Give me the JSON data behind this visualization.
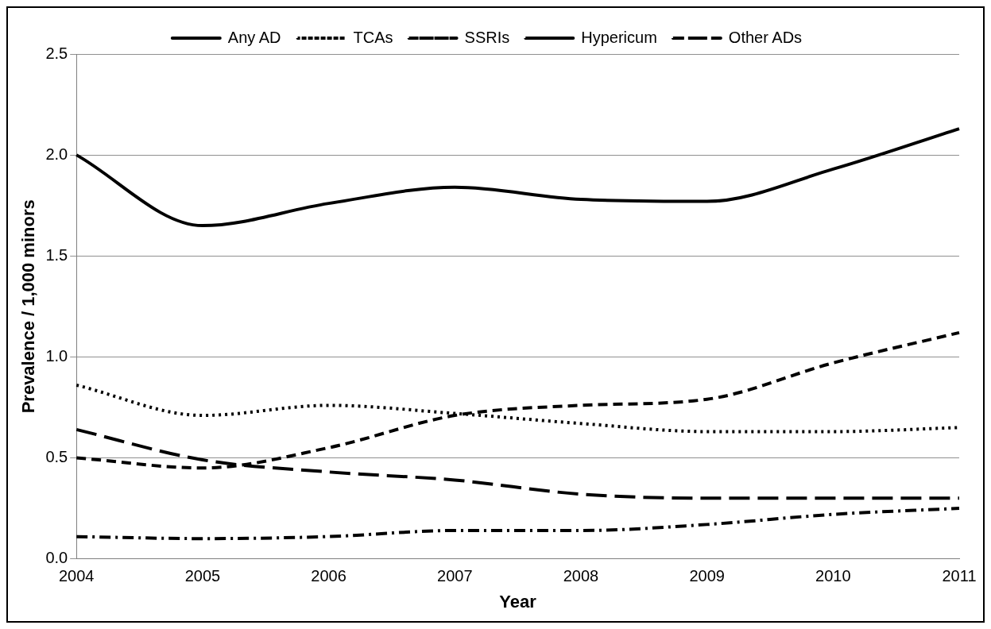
{
  "chart_data": {
    "type": "line",
    "xlabel": "Year",
    "ylabel": "Prevalence / 1,000 minors",
    "categories": [
      "2004",
      "2005",
      "2006",
      "2007",
      "2008",
      "2009",
      "2010",
      "2011"
    ],
    "series": [
      {
        "name": "Any AD",
        "color": "#000000",
        "line_style": "solid",
        "values": [
          2.0,
          1.65,
          1.76,
          1.84,
          1.78,
          1.77,
          1.93,
          2.13
        ]
      },
      {
        "name": "TCAs",
        "color": "#000000",
        "line_style": "dotted",
        "values": [
          0.86,
          0.71,
          0.76,
          0.72,
          0.67,
          0.63,
          0.63,
          0.65
        ]
      },
      {
        "name": "SSRIs",
        "color": "#000000",
        "line_style": "dashed",
        "values": [
          0.5,
          0.45,
          0.55,
          0.71,
          0.76,
          0.79,
          0.97,
          1.12
        ]
      },
      {
        "name": "Hypericum",
        "color": "#000000",
        "line_style": "longdash",
        "values": [
          0.64,
          0.49,
          0.43,
          0.39,
          0.32,
          0.3,
          0.3,
          0.3
        ]
      },
      {
        "name": "Other ADs",
        "color": "#000000",
        "line_style": "dashdot",
        "values": [
          0.11,
          0.1,
          0.11,
          0.14,
          0.14,
          0.17,
          0.22,
          0.25
        ]
      }
    ],
    "ylim": [
      0,
      2.5
    ],
    "yticks": [
      {
        "value": 0,
        "label": "0.0"
      },
      {
        "value": 0.5,
        "label": "0.5"
      },
      {
        "value": 1,
        "label": "1.0"
      },
      {
        "value": 1.5,
        "label": "1.5"
      },
      {
        "value": 2,
        "label": "2.0"
      },
      {
        "value": 2.5,
        "label": "2.5"
      }
    ],
    "grid": "y",
    "legend": "top",
    "marker": "none"
  }
}
